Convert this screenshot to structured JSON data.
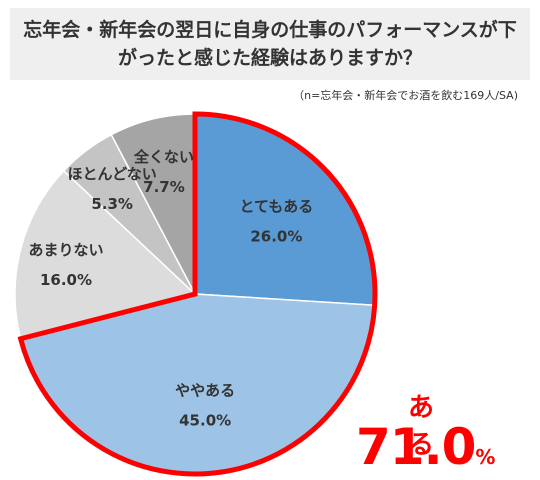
{
  "chart_data": {
    "type": "pie",
    "title": "忘年会・新年会の翌日に自身の仕事のパフォーマンスが下がったと感じた経験はありますか？",
    "note": "（n=忘年会・新年会でお酒を飲む169人/SA)",
    "unit": "%",
    "start": "12 o'clock",
    "direction": "clockwise",
    "slices": [
      {
        "label": "とてもある",
        "value": 26.0,
        "display": "26.0%",
        "color": "#5b9bd5",
        "highlight": true
      },
      {
        "label": "ややある",
        "value": 45.0,
        "display": "45.0%",
        "color": "#9dc3e6",
        "highlight": true
      },
      {
        "label": "あまりない",
        "value": 16.0,
        "display": "16.0%",
        "color": "#dcdcdc",
        "highlight": false
      },
      {
        "label": "ほとんどない",
        "value": 5.3,
        "display": "5.3%",
        "color": "#c4c4c4",
        "highlight": false
      },
      {
        "label": "全くない",
        "value": 7.7,
        "display": "7.7%",
        "color": "#a5a5a5",
        "highlight": false
      }
    ],
    "highlight_outline_color": "#ff0000",
    "callout": {
      "label": "ある",
      "value": "71.0",
      "unit": "%",
      "color": "#ff0000"
    }
  }
}
